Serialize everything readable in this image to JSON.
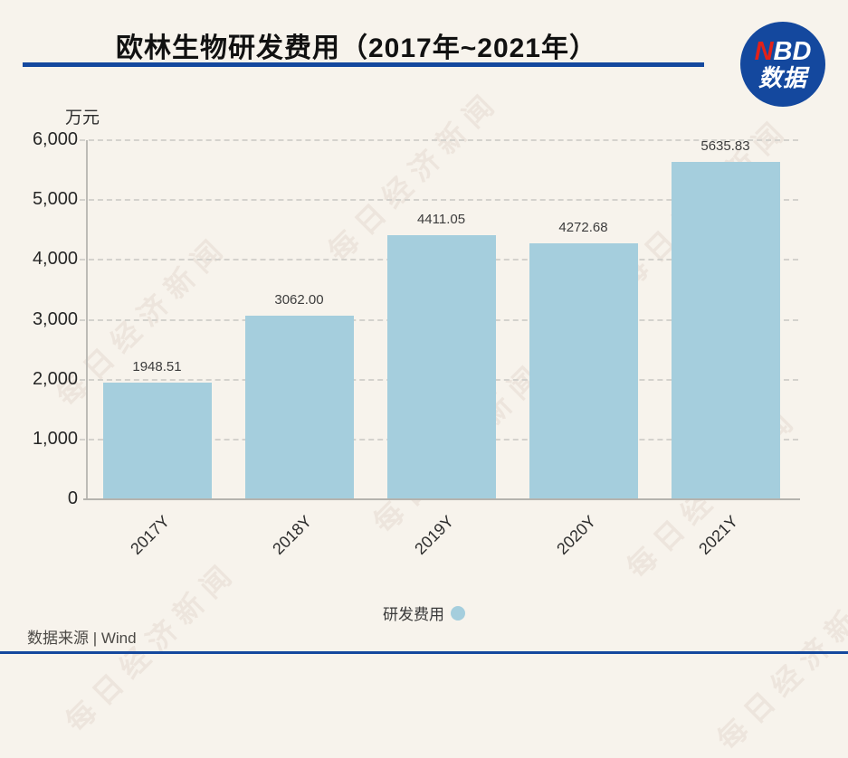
{
  "header": {
    "title": "欧林生物研发费用（2017年~2021年）",
    "logo_line1_accent": "N",
    "logo_line1_rest": "BD",
    "logo_line2": "数据"
  },
  "chart_data": {
    "type": "bar",
    "title": "欧林生物研发费用（2017年~2021年）",
    "unit_label": "万元",
    "categories": [
      "2017Y",
      "2018Y",
      "2019Y",
      "2020Y",
      "2021Y"
    ],
    "values": [
      1948.51,
      3062.0,
      4411.05,
      4272.68,
      5635.83
    ],
    "value_labels": [
      "1948.51",
      "3062.00",
      "4411.05",
      "4272.68",
      "5635.83"
    ],
    "series_name": "研发费用",
    "xlabel": "",
    "ylabel": "万元",
    "ylim": [
      0,
      6000
    ],
    "ytick_interval": 1000,
    "ytick_labels": [
      "0",
      "1,000",
      "2,000",
      "3,000",
      "4,000",
      "5,000",
      "6,000"
    ],
    "grid": true,
    "gridline_style": "dashed",
    "legend_position": "bottom",
    "bar_color": "#a5cedd"
  },
  "footer": {
    "source": "数据来源 | Wind"
  },
  "watermark": {
    "text": "每日经济新闻"
  },
  "colors": {
    "background": "#f7f3ec",
    "accent_blue": "#14489e",
    "logo_red": "#e32119",
    "bar": "#a5cedd"
  }
}
